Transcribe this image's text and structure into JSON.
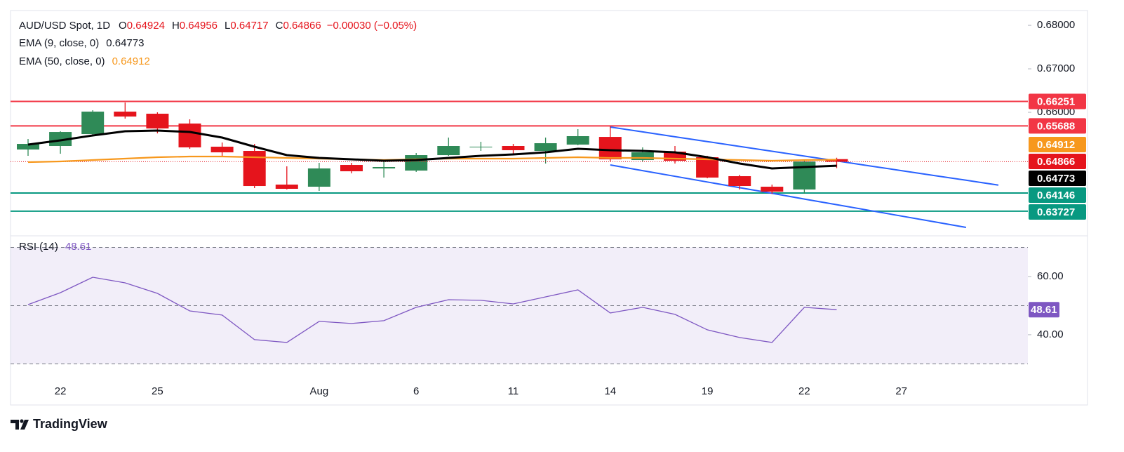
{
  "chart_data": [
    {
      "type": "candlestick",
      "title": "AUD/USD Spot, 1D",
      "categories": [
        null,
        "22",
        null,
        null,
        "25",
        null,
        null,
        null,
        null,
        "Aug",
        null,
        null,
        "6",
        null,
        null,
        "11",
        null,
        null,
        "14",
        null,
        null,
        "19",
        null,
        null,
        "22",
        null,
        null,
        "27",
        null,
        null,
        null
      ],
      "ohlc": {
        "labels": [
          "O",
          "H",
          "L",
          "C"
        ],
        "open": [
          0.65145,
          0.65226,
          0.655,
          0.66016,
          0.65968,
          0.65742,
          0.6521,
          0.65113,
          0.64339,
          0.6429,
          0.6479,
          0.6471,
          0.64661,
          0.65016,
          0.65194,
          0.65226,
          0.65113,
          0.65258,
          0.65435,
          0.64903,
          0.65097,
          0.64968,
          0.64532,
          0.6429,
          0.64226,
          0.64924,
          null,
          null,
          null,
          null,
          null
        ],
        "high": [
          0.65387,
          0.65564,
          0.66048,
          0.66226,
          0.66,
          0.65839,
          0.65306,
          0.65274,
          0.64758,
          0.64839,
          0.64839,
          0.64871,
          0.65065,
          0.65419,
          0.65323,
          0.65274,
          0.65419,
          0.65613,
          0.65677,
          0.65194,
          0.65226,
          0.65,
          0.64564,
          0.64339,
          0.64903,
          0.64956,
          null,
          null,
          null,
          null,
          null
        ],
        "low": [
          0.65,
          0.65048,
          0.65484,
          0.65855,
          0.65516,
          0.65161,
          0.65,
          0.64258,
          0.64226,
          0.64194,
          0.64597,
          0.645,
          0.64629,
          0.65,
          0.65113,
          0.65016,
          0.64823,
          0.65242,
          0.64871,
          0.64871,
          0.64823,
          0.64484,
          0.64226,
          0.64129,
          0.64129,
          0.64717,
          null,
          null,
          null,
          null,
          null
        ],
        "close": [
          0.65274,
          0.65548,
          0.66016,
          0.65903,
          0.65629,
          0.65194,
          0.6508,
          0.64306,
          0.64242,
          0.6471,
          0.64645,
          0.64742,
          0.65016,
          0.65226,
          0.6521,
          0.65129,
          0.6529,
          0.65452,
          0.64919,
          0.65081,
          0.64887,
          0.645,
          0.64306,
          0.64177,
          0.64871,
          0.64866,
          null,
          null,
          null,
          null,
          null
        ]
      },
      "change": "−0.00030 (−0.05%)",
      "up_color": "#2f8a57",
      "down_color": "#e5141c",
      "series": [
        {
          "name": "EMA (9, close, 0)",
          "color": "#000000",
          "values": [
            0.65258,
            0.65355,
            0.65468,
            0.65565,
            0.65581,
            0.65548,
            0.6542,
            0.6521,
            0.65016,
            0.64952,
            0.6492,
            0.64887,
            0.64903,
            0.64952,
            0.65,
            0.65032,
            0.65081,
            0.65161,
            0.65129,
            0.65113,
            0.65081,
            0.64968,
            0.64823,
            0.6471,
            0.64742,
            0.64773,
            null,
            null,
            null,
            null,
            null
          ]
        },
        {
          "name": "EMA (50, close, 0)",
          "color": "#f7981d",
          "values": [
            0.64855,
            0.64871,
            0.64903,
            0.64935,
            0.64968,
            0.64984,
            0.64984,
            0.64968,
            0.64952,
            0.64935,
            0.64919,
            0.64903,
            0.64919,
            0.64935,
            0.64935,
            0.64935,
            0.64952,
            0.64968,
            0.64952,
            0.64952,
            0.64935,
            0.64919,
            0.64903,
            0.64887,
            0.64903,
            0.64912,
            null,
            null,
            null,
            null,
            null
          ]
        }
      ],
      "levels": [
        {
          "value": 0.66251,
          "color": "#f23645"
        },
        {
          "value": 0.65688,
          "color": "#f23645"
        },
        {
          "value": 0.64146,
          "color": "#089981"
        },
        {
          "value": 0.63727,
          "color": "#089981"
        }
      ],
      "trendlines": [
        {
          "color": "#2962ff",
          "values": [
            null,
            null,
            null,
            null,
            null,
            null,
            null,
            null,
            null,
            null,
            null,
            null,
            null,
            null,
            null,
            null,
            null,
            null,
            0.65661,
            0.6555,
            0.65438,
            0.65327,
            0.65216,
            0.65105,
            0.64994,
            0.64883,
            0.64771,
            0.6466,
            0.64549,
            0.64438,
            0.64327
          ]
        },
        {
          "color": "#2962ff",
          "values": [
            null,
            null,
            null,
            null,
            null,
            null,
            null,
            null,
            null,
            null,
            null,
            null,
            null,
            null,
            null,
            null,
            null,
            null,
            0.6479,
            0.6466,
            0.64529,
            0.64399,
            0.64268,
            0.64138,
            0.64007,
            0.63877,
            0.63746,
            0.63616,
            0.63486,
            0.63355,
            null
          ]
        }
      ],
      "ylim": [
        0.6329,
        0.6834
      ],
      "yticks": [
        {
          "value": 0.68,
          "label": "0.68000"
        },
        {
          "value": 0.67,
          "label": "0.67000"
        },
        {
          "value": 0.66,
          "label": "0.66000"
        }
      ]
    },
    {
      "type": "line",
      "title": "RSI (14)",
      "series": [
        {
          "name": "RSI (14)",
          "color": "#7e57c2",
          "values": [
            50.36,
            54.46,
            59.76,
            57.83,
            54.22,
            48.19,
            46.75,
            38.31,
            37.35,
            44.58,
            43.86,
            44.82,
            49.4,
            52.05,
            51.81,
            50.6,
            53.01,
            55.42,
            47.47,
            49.4,
            46.99,
            41.69,
            39.04,
            37.35,
            49.4,
            48.61,
            null,
            null,
            null,
            null,
            null
          ]
        }
      ],
      "levels": [
        70,
        50,
        30
      ],
      "band_color": "#7e57c2",
      "ylim": [
        27.2,
        73.5
      ],
      "yticks": [
        {
          "value": 60,
          "label": "60.00"
        },
        {
          "value": 40,
          "label": "40.00"
        }
      ]
    }
  ],
  "footer": {
    "brand": "TradingView"
  }
}
